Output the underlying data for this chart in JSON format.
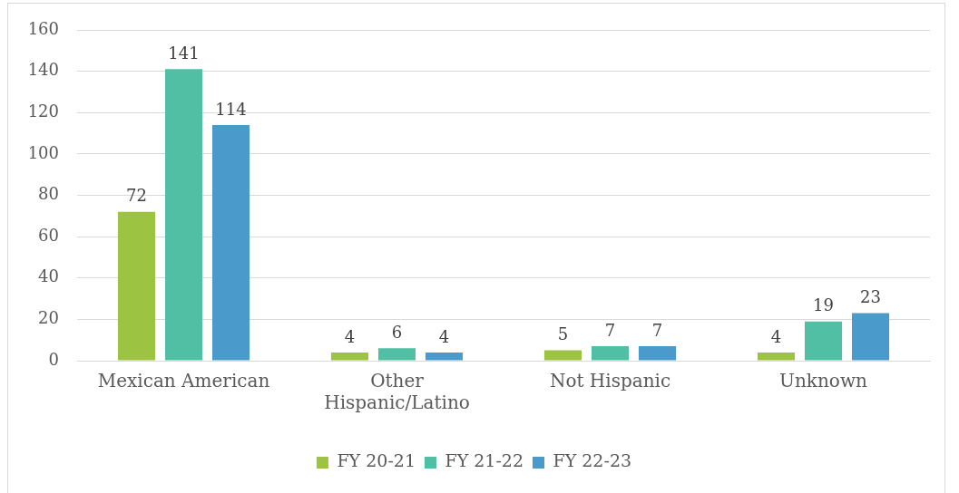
{
  "chart_data": {
    "type": "bar",
    "categories": [
      "Mexican American",
      "Other Hispanic/Latino",
      "Not Hispanic",
      "Unknown"
    ],
    "series": [
      {
        "name": "FY 20-21",
        "color": "#9dc343",
        "values": [
          72,
          4,
          5,
          4
        ]
      },
      {
        "name": "FY 21-22",
        "color": "#50bfa4",
        "values": [
          141,
          6,
          7,
          19
        ]
      },
      {
        "name": "FY 22-23",
        "color": "#4a9bcc",
        "values": [
          114,
          4,
          7,
          23
        ]
      }
    ],
    "ylim": [
      0,
      160
    ],
    "yticks": [
      0,
      20,
      40,
      60,
      80,
      100,
      120,
      140,
      160
    ],
    "grid": "y",
    "legend": "bottom",
    "data_labels": true
  }
}
